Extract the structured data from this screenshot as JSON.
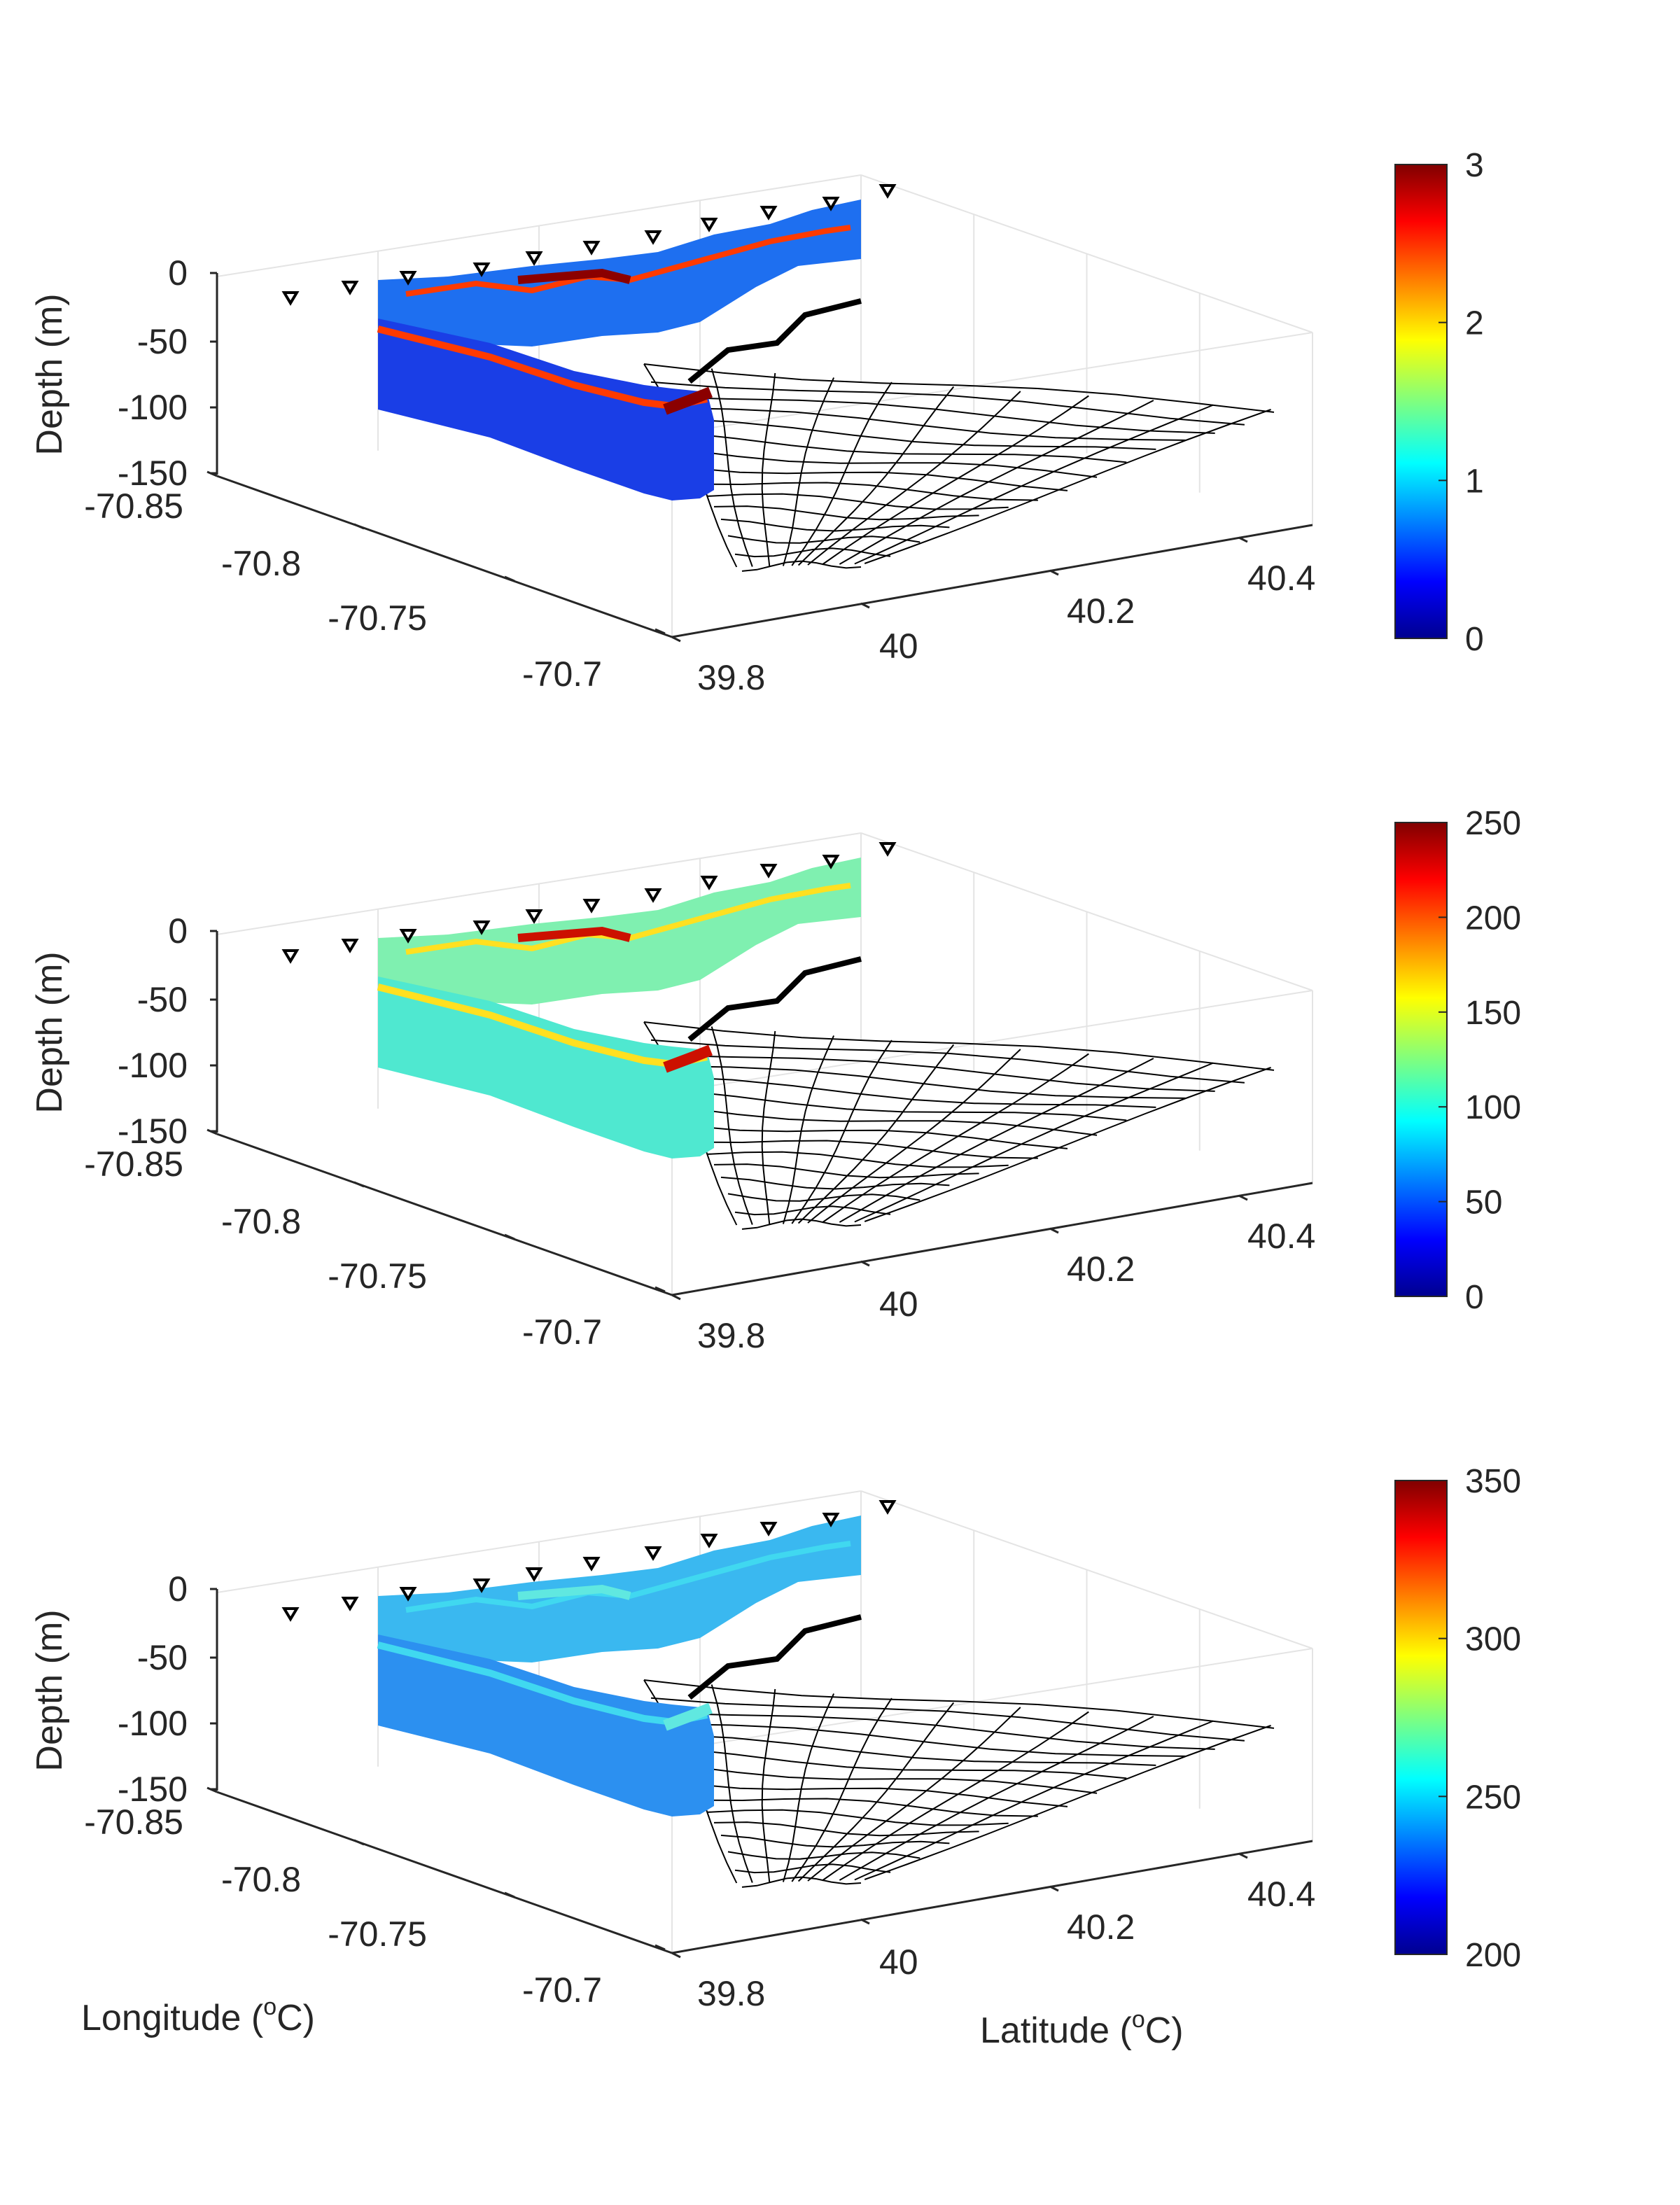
{
  "chart_data": [
    {
      "type": "3d-section",
      "ylabel": "Depth (m)",
      "z_ticks": [
        "0",
        "-50",
        "-100",
        "-150"
      ],
      "lon_ticks": [
        "-70.85",
        "-70.8",
        "-70.75",
        "-70.7"
      ],
      "lat_ticks": [
        "39.8",
        "40",
        "40.2",
        "40.4"
      ],
      "zlim": [
        -150,
        0
      ],
      "lon_range": [
        -70.85,
        -70.7
      ],
      "lat_range": [
        39.8,
        40.45
      ],
      "colorbar": {
        "ticks": [
          "0",
          "1",
          "2",
          "3"
        ],
        "range": [
          0,
          3
        ],
        "colormap": "jet"
      },
      "colors": {
        "low": "#1a3ee6",
        "mid": "#1e6ff0",
        "band": "#ff3a00",
        "peak": "#8b0000"
      }
    },
    {
      "type": "3d-section",
      "ylabel": "Depth (m)",
      "z_ticks": [
        "0",
        "-50",
        "-100",
        "-150"
      ],
      "lon_ticks": [
        "-70.85",
        "-70.8",
        "-70.75",
        "-70.7"
      ],
      "lat_ticks": [
        "39.8",
        "40",
        "40.2",
        "40.4"
      ],
      "zlim": [
        -150,
        0
      ],
      "lon_range": [
        -70.85,
        -70.7
      ],
      "lat_range": [
        39.8,
        40.45
      ],
      "colorbar": {
        "ticks": [
          "0",
          "50",
          "100",
          "150",
          "200",
          "250"
        ],
        "range": [
          0,
          250
        ],
        "colormap": "jet"
      },
      "colors": {
        "low": "#4fe8d0",
        "mid": "#7ff0b0",
        "band": "#ffe020",
        "peak": "#cc1000"
      }
    },
    {
      "type": "3d-section",
      "ylabel": "Depth (m)",
      "z_ticks": [
        "0",
        "-50",
        "-100",
        "-150"
      ],
      "lon_ticks": [
        "-70.85",
        "-70.8",
        "-70.75",
        "-70.7"
      ],
      "lat_ticks": [
        "39.8",
        "40",
        "40.2",
        "40.4"
      ],
      "zlim": [
        -150,
        0
      ],
      "lon_range": [
        -70.85,
        -70.7
      ],
      "lat_range": [
        39.8,
        40.45
      ],
      "colorbar": {
        "ticks": [
          "200",
          "250",
          "300",
          "350"
        ],
        "range": [
          200,
          350
        ],
        "colormap": "jet"
      },
      "colors": {
        "low": "#2c90f0",
        "mid": "#3ab8f0",
        "band": "#40d8f0",
        "peak": "#60e8e0"
      }
    }
  ],
  "labels": {
    "longitude_main": "Longitude (",
    "latitude_main": "Latitude (",
    "degree_sup": "o",
    "unit_suffix": "C)"
  }
}
